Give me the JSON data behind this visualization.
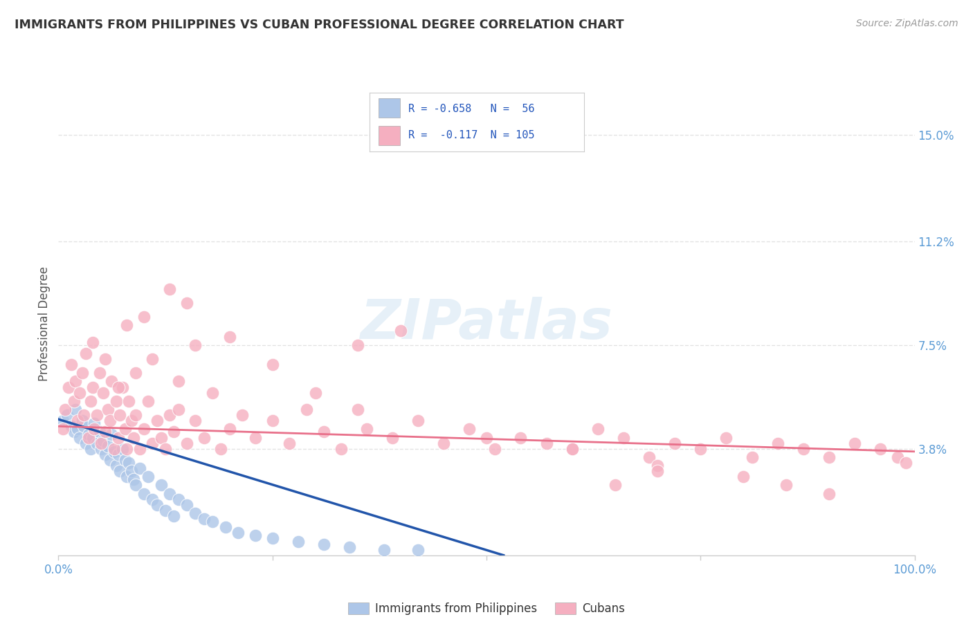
{
  "title": "IMMIGRANTS FROM PHILIPPINES VS CUBAN PROFESSIONAL DEGREE CORRELATION CHART",
  "source": "Source: ZipAtlas.com",
  "ylabel": "Professional Degree",
  "xlim": [
    0.0,
    1.0
  ],
  "ylim": [
    0.0,
    0.165
  ],
  "yticks": [
    0.038,
    0.075,
    0.112,
    0.15
  ],
  "ytick_labels": [
    "3.8%",
    "7.5%",
    "11.2%",
    "15.0%"
  ],
  "color_philippines": "#adc6e8",
  "color_cubans": "#f5afc0",
  "line_color_philippines": "#2255aa",
  "line_color_cubans": "#e8708a",
  "grid_color": "#dddddd",
  "background_color": "#ffffff",
  "philippines_x": [
    0.005,
    0.01,
    0.015,
    0.018,
    0.02,
    0.022,
    0.025,
    0.028,
    0.03,
    0.032,
    0.035,
    0.038,
    0.04,
    0.042,
    0.045,
    0.048,
    0.05,
    0.052,
    0.055,
    0.058,
    0.06,
    0.062,
    0.065,
    0.068,
    0.07,
    0.072,
    0.075,
    0.078,
    0.08,
    0.082,
    0.085,
    0.088,
    0.09,
    0.095,
    0.1,
    0.105,
    0.11,
    0.115,
    0.12,
    0.125,
    0.13,
    0.135,
    0.14,
    0.15,
    0.16,
    0.17,
    0.18,
    0.195,
    0.21,
    0.23,
    0.25,
    0.28,
    0.31,
    0.34,
    0.38,
    0.42
  ],
  "philippines_y": [
    0.048,
    0.05,
    0.046,
    0.044,
    0.052,
    0.045,
    0.042,
    0.048,
    0.046,
    0.04,
    0.043,
    0.038,
    0.042,
    0.047,
    0.04,
    0.044,
    0.038,
    0.041,
    0.036,
    0.039,
    0.034,
    0.043,
    0.037,
    0.032,
    0.036,
    0.03,
    0.038,
    0.034,
    0.028,
    0.033,
    0.03,
    0.027,
    0.025,
    0.031,
    0.022,
    0.028,
    0.02,
    0.018,
    0.025,
    0.016,
    0.022,
    0.014,
    0.02,
    0.018,
    0.015,
    0.013,
    0.012,
    0.01,
    0.008,
    0.007,
    0.006,
    0.005,
    0.004,
    0.003,
    0.002,
    0.002
  ],
  "cubans_x": [
    0.005,
    0.008,
    0.012,
    0.015,
    0.018,
    0.02,
    0.022,
    0.025,
    0.028,
    0.03,
    0.032,
    0.035,
    0.038,
    0.04,
    0.042,
    0.045,
    0.048,
    0.05,
    0.052,
    0.055,
    0.058,
    0.06,
    0.062,
    0.065,
    0.068,
    0.07,
    0.072,
    0.075,
    0.078,
    0.08,
    0.082,
    0.085,
    0.088,
    0.09,
    0.095,
    0.1,
    0.105,
    0.11,
    0.115,
    0.12,
    0.125,
    0.13,
    0.135,
    0.14,
    0.15,
    0.16,
    0.17,
    0.18,
    0.19,
    0.2,
    0.215,
    0.23,
    0.25,
    0.27,
    0.29,
    0.31,
    0.33,
    0.36,
    0.39,
    0.42,
    0.45,
    0.48,
    0.51,
    0.54,
    0.57,
    0.6,
    0.63,
    0.66,
    0.69,
    0.72,
    0.75,
    0.78,
    0.81,
    0.84,
    0.87,
    0.9,
    0.93,
    0.96,
    0.98,
    0.99,
    0.1,
    0.15,
    0.2,
    0.25,
    0.35,
    0.4,
    0.13,
    0.08,
    0.055,
    0.04,
    0.07,
    0.09,
    0.11,
    0.16,
    0.14,
    0.3,
    0.35,
    0.5,
    0.6,
    0.7,
    0.8,
    0.85,
    0.9,
    0.7,
    0.65
  ],
  "cubans_y": [
    0.045,
    0.052,
    0.06,
    0.068,
    0.055,
    0.062,
    0.048,
    0.058,
    0.065,
    0.05,
    0.072,
    0.042,
    0.055,
    0.06,
    0.045,
    0.05,
    0.065,
    0.04,
    0.058,
    0.044,
    0.052,
    0.048,
    0.062,
    0.038,
    0.055,
    0.042,
    0.05,
    0.06,
    0.045,
    0.038,
    0.055,
    0.048,
    0.042,
    0.05,
    0.038,
    0.045,
    0.055,
    0.04,
    0.048,
    0.042,
    0.038,
    0.05,
    0.044,
    0.052,
    0.04,
    0.048,
    0.042,
    0.058,
    0.038,
    0.045,
    0.05,
    0.042,
    0.048,
    0.04,
    0.052,
    0.044,
    0.038,
    0.045,
    0.042,
    0.048,
    0.04,
    0.045,
    0.038,
    0.042,
    0.04,
    0.038,
    0.045,
    0.042,
    0.035,
    0.04,
    0.038,
    0.042,
    0.035,
    0.04,
    0.038,
    0.035,
    0.04,
    0.038,
    0.035,
    0.033,
    0.085,
    0.09,
    0.078,
    0.068,
    0.075,
    0.08,
    0.095,
    0.082,
    0.07,
    0.076,
    0.06,
    0.065,
    0.07,
    0.075,
    0.062,
    0.058,
    0.052,
    0.042,
    0.038,
    0.032,
    0.028,
    0.025,
    0.022,
    0.03,
    0.025
  ],
  "phil_line_x0": 0.0,
  "phil_line_y0": 0.0485,
  "phil_line_x1": 0.52,
  "phil_line_y1": 0.0,
  "cuban_line_x0": 0.0,
  "cuban_line_y0": 0.046,
  "cuban_line_x1": 1.0,
  "cuban_line_y1": 0.037
}
